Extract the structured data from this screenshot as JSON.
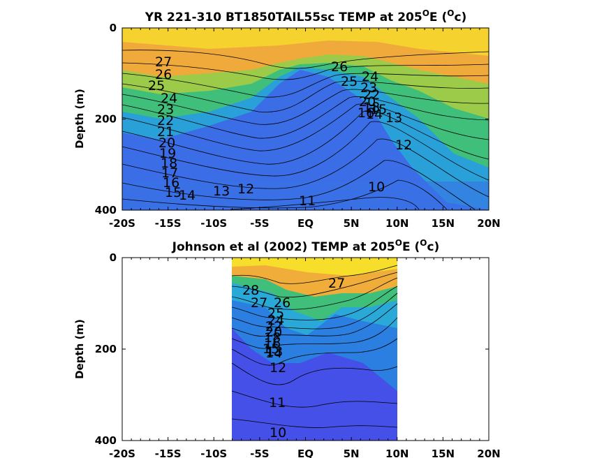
{
  "chart_data": [
    {
      "type": "contour",
      "title": "YR 221-310 BT1850TAIL55sc TEMP at 205",
      "title_sup1": "O",
      "title_mid": "E (",
      "title_sup2": "O",
      "title_end": "c)",
      "ylabel": "Depth (m)",
      "ylim": [
        400,
        0
      ],
      "yticks": [
        "0",
        "200",
        "400"
      ],
      "xticks": [
        "-20S",
        "-15S",
        "-10S",
        "-5S",
        "EQ",
        "5N",
        "10N",
        "15N",
        "20N"
      ],
      "x_range": [
        -20,
        20
      ],
      "data_extent": [
        -20,
        20
      ],
      "contour_labels": [
        "27",
        "26",
        "25",
        "24",
        "23",
        "22",
        "21",
        "20",
        "19",
        "18",
        "17",
        "16",
        "15",
        "14",
        "13",
        "12",
        "11",
        "10",
        "26",
        "25",
        "24",
        "23",
        "22",
        "20",
        "18",
        "16",
        "15",
        "14",
        "13",
        "12"
      ]
    },
    {
      "type": "contour",
      "title": "Johnson et al (2002) TEMP at 205",
      "title_sup1": "O",
      "title_mid": "E (",
      "title_sup2": "O",
      "title_end": "c)",
      "ylabel": "Depth (m)",
      "ylim": [
        400,
        0
      ],
      "yticks": [
        "0",
        "200",
        "400"
      ],
      "xticks": [
        "-20S",
        "-15S",
        "-10S",
        "-5S",
        "EQ",
        "5N",
        "10N",
        "15N",
        "20N"
      ],
      "x_range": [
        -20,
        20
      ],
      "data_extent": [
        -8,
        10
      ],
      "contour_labels": [
        "28",
        "27",
        "26",
        "25",
        "24",
        "22",
        "20",
        "18",
        "16",
        "15",
        "14",
        "13",
        "12",
        "11",
        "10",
        "27"
      ]
    }
  ],
  "colors": {
    "warm": "#f9e12a",
    "orange": "#f2a93a",
    "green": "#3fbf7a",
    "cyan": "#2aa9d8",
    "blue": "#3b5ce8"
  }
}
